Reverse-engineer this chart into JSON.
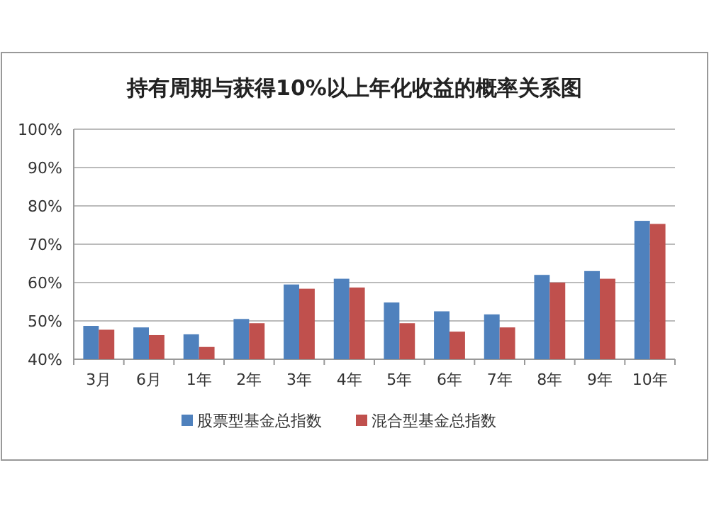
{
  "chart_data": {
    "type": "bar",
    "title": "持有周期与获得10%以上年化收益的概率关系图",
    "categories": [
      "3月",
      "6月",
      "1年",
      "2年",
      "3年",
      "4年",
      "5年",
      "6年",
      "7年",
      "8年",
      "9年",
      "10年"
    ],
    "series": [
      {
        "name": "股票型基金总指数",
        "color": "#4f81bd",
        "values": [
          48.7,
          48.3,
          46.5,
          50.5,
          59.5,
          61,
          54.8,
          52.5,
          51.7,
          62,
          63,
          76.1
        ]
      },
      {
        "name": "混合型基金总指数",
        "color": "#c0504d",
        "values": [
          47.7,
          46.3,
          43.2,
          49.4,
          58.4,
          58.7,
          49.4,
          47.2,
          48.3,
          60,
          61,
          75.3
        ]
      }
    ],
    "ylim": [
      40,
      100
    ],
    "yticks": [
      {
        "value": 40,
        "label": "40%"
      },
      {
        "value": 50,
        "label": "50%"
      },
      {
        "value": 60,
        "label": "60%"
      },
      {
        "value": 70,
        "label": "70%"
      },
      {
        "value": 80,
        "label": "80%"
      },
      {
        "value": 90,
        "label": "90%"
      },
      {
        "value": 100,
        "label": "100%"
      }
    ],
    "grid": "y",
    "legend": "bottom"
  }
}
